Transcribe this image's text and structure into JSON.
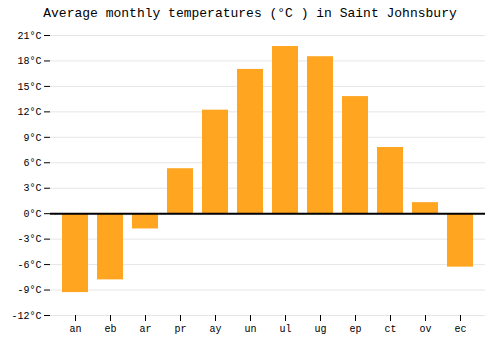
{
  "chart_data": {
    "type": "bar",
    "title": "Average monthly temperatures (°C ) in Saint Johnsbury",
    "categories": [
      "an",
      "eb",
      "ar",
      "pr",
      "ay",
      "un",
      "ul",
      "ug",
      "ep",
      "ct",
      "ov",
      "ec"
    ],
    "values": [
      -9.3,
      -7.8,
      -1.8,
      5.3,
      12.2,
      17.0,
      19.7,
      18.5,
      13.8,
      7.8,
      1.3,
      -6.3
    ],
    "color": "#FFA520",
    "ylim": [
      -12,
      21
    ],
    "yticks": [
      {
        "value": -12,
        "label": "-12°C"
      },
      {
        "value": -9,
        "label": "-9°C"
      },
      {
        "value": -6,
        "label": "-6°C"
      },
      {
        "value": -3,
        "label": "-3°C"
      },
      {
        "value": 0,
        "label": "0°C"
      },
      {
        "value": 3,
        "label": "3°C"
      },
      {
        "value": 6,
        "label": "6°C"
      },
      {
        "value": 9,
        "label": "9°C"
      },
      {
        "value": 12,
        "label": "12°C"
      },
      {
        "value": 15,
        "label": "15°C"
      },
      {
        "value": 18,
        "label": "18°C"
      },
      {
        "value": 21,
        "label": "21°C"
      }
    ],
    "grid": true
  }
}
